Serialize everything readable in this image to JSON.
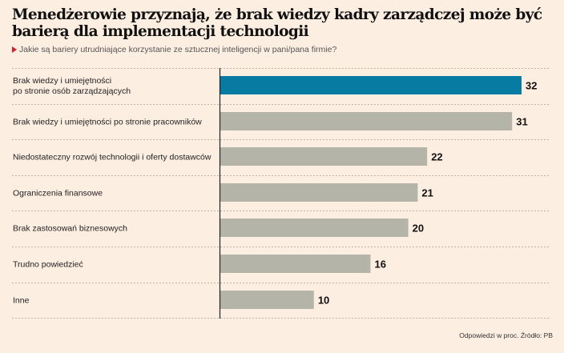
{
  "header": {
    "title": "Menedżerowie przyznają, że brak wiedzy kadry zarządczej może być barierą dla implementacji technologii",
    "subtitle": "Jakie są bariery utrudniające korzystanie ze sztucznej inteligencji w pani/pana firmie?"
  },
  "footer": {
    "note": "Odpowiedzi w proc. Źródło: PB"
  },
  "colors": {
    "background": "#fdeee2",
    "highlight": "#077ba1",
    "bar": "#b5b4a9",
    "marker": "#d3202a"
  },
  "chart_data": {
    "type": "bar",
    "orientation": "horizontal",
    "title": "Menedżerowie przyznają, że brak wiedzy kadry zarządczej może być barierą dla implementacji technologii",
    "subtitle": "Jakie są bariery utrudniające korzystanie ze sztucznej inteligencji w pani/pana firmie?",
    "unit": "Odpowiedzi w proc.",
    "categories": [
      [
        "Brak wiedzy i umiejętności",
        "po stronie osób zarządzających"
      ],
      [
        "Brak wiedzy i umiejętności po stronie pracowników"
      ],
      [
        "Niedostateczny rozwój technologii i oferty dostawców"
      ],
      [
        "Ograniczenia finansowe"
      ],
      [
        "Brak zastosowań biznesowych"
      ],
      [
        "Trudno powiedzieć"
      ],
      [
        "Inne"
      ]
    ],
    "values": [
      32,
      31,
      22,
      21,
      20,
      16,
      10
    ],
    "highlighted_index": 0,
    "xlim": [
      0,
      32
    ],
    "grid": "dashed row separators",
    "legend": "none"
  }
}
